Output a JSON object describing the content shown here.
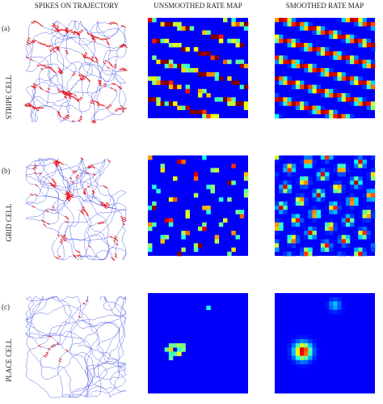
{
  "column_headers": [
    "SPIKES ON TRAJECTORY",
    "UNSMOOTHED RATE MAP",
    "SMOOTHED RATE MAP"
  ],
  "rows": [
    {
      "label": "(a)",
      "name": "STRIPE CELL"
    },
    {
      "label": "(b)",
      "name": "GRID CELL"
    },
    {
      "label": "(c)",
      "name": "PLACE CELL"
    }
  ]
}
